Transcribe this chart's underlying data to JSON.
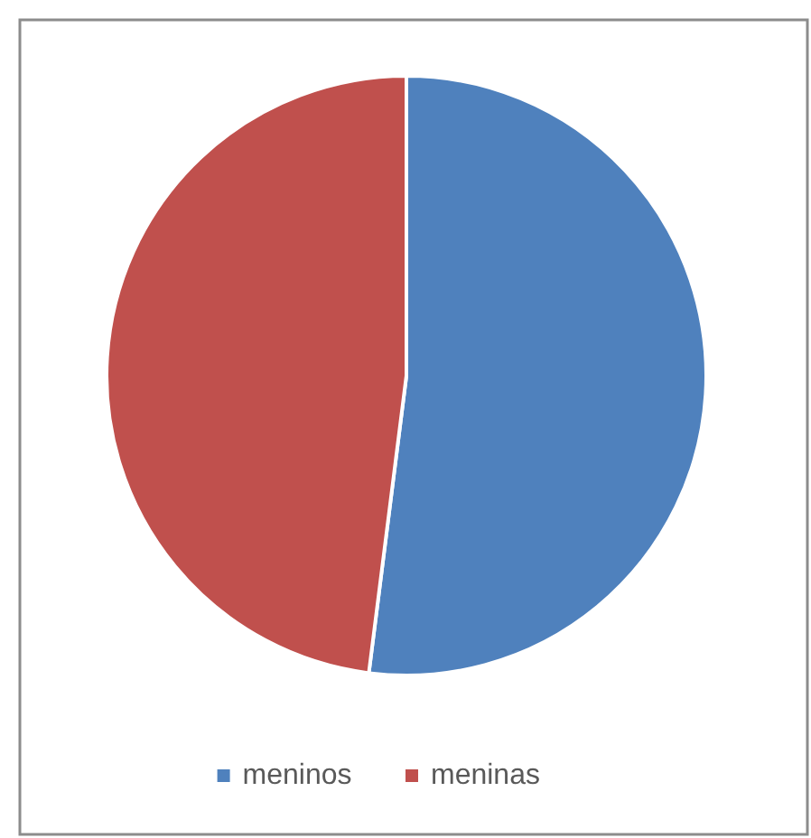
{
  "chart_data": {
    "type": "pie",
    "categories": [
      "meninos",
      "meninas"
    ],
    "values": [
      52,
      48
    ],
    "colors": [
      "#4f81bd",
      "#c0504d"
    ],
    "legend": "bottom"
  }
}
